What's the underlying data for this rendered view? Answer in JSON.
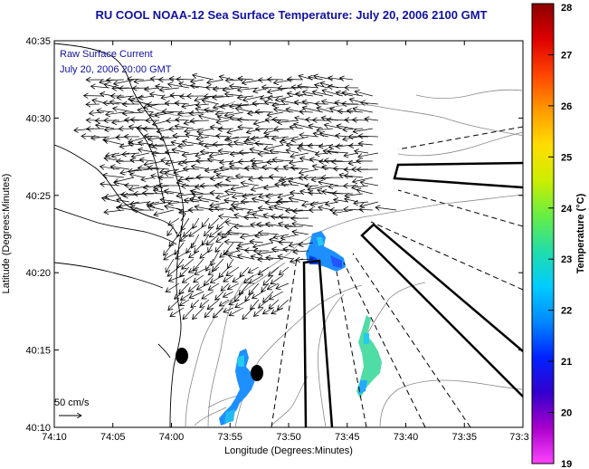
{
  "title": "RU COOL   NOAA-12  Sea Surface Temperature:  July 20, 2006 2100 GMT",
  "legend": {
    "line1": "Raw Surface Current",
    "line2": "July 20, 2006 20:00 GMT"
  },
  "scale": {
    "label": "50 cm/s"
  },
  "axes": {
    "xlabel": "Longitude (Degrees:Minutes)",
    "ylabel": "Latitude (Degrees:Minutes)",
    "xticks": [
      "74:10",
      "74:05",
      "74:00",
      "73:55",
      "73:50",
      "73:45",
      "73:40",
      "73:35",
      "73:3"
    ],
    "yticks": [
      "40:35",
      "40:30",
      "40:25",
      "40:20",
      "40:15",
      "40:10"
    ]
  },
  "colorbar": {
    "label": "Temperature (°C)",
    "ticks": [
      "28",
      "27",
      "26",
      "25",
      "24",
      "23",
      "22",
      "21",
      "20",
      "19"
    ],
    "colors": [
      "#8b0000",
      "#dd0000",
      "#ff4400",
      "#ff9900",
      "#ffdd00",
      "#ccee00",
      "#66ee44",
      "#22ddaa",
      "#00ccff",
      "#0088ff",
      "#0022ff",
      "#3300cc",
      "#aa00cc",
      "#ff44ff"
    ]
  }
}
